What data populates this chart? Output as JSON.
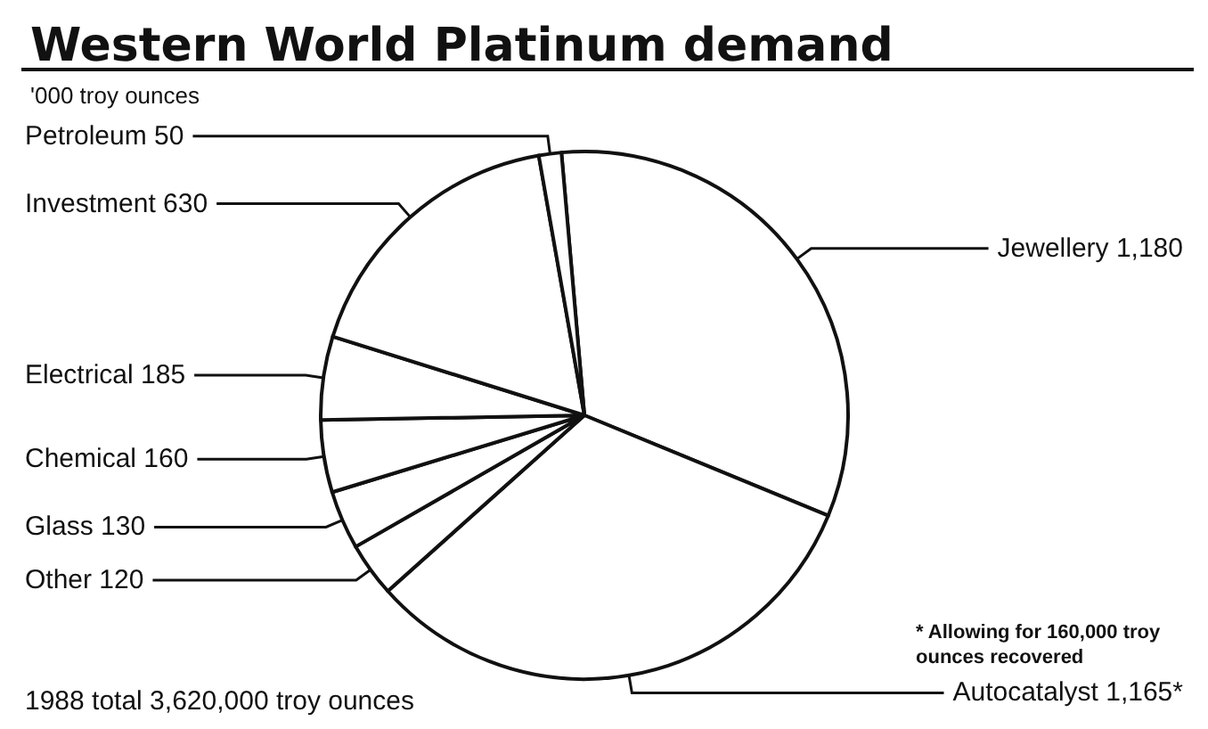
{
  "chart_data": {
    "type": "pie",
    "title": "Western World Platinum demand",
    "subtitle": "'000 troy ounces",
    "categories": [
      "Jewellery",
      "Autocatalyst",
      "Other",
      "Glass",
      "Chemical",
      "Electrical",
      "Investment",
      "Petroleum"
    ],
    "values": [
      1180,
      1165,
      120,
      130,
      160,
      185,
      630,
      50
    ],
    "value_labels": [
      "1,180",
      "1,165*",
      "120",
      "130",
      "160",
      "185",
      "630",
      "50"
    ],
    "colors": [
      "#ffffff",
      "#ffffff",
      "#ffffff",
      "#ffffff",
      "#ffffff",
      "#ffffff",
      "#ffffff",
      "#ffffff"
    ],
    "annotations": [
      "* Allowing for 160,000 troy ounces recovered",
      "1988 total 3,620,000 troy ounces"
    ],
    "legend": false
  }
}
